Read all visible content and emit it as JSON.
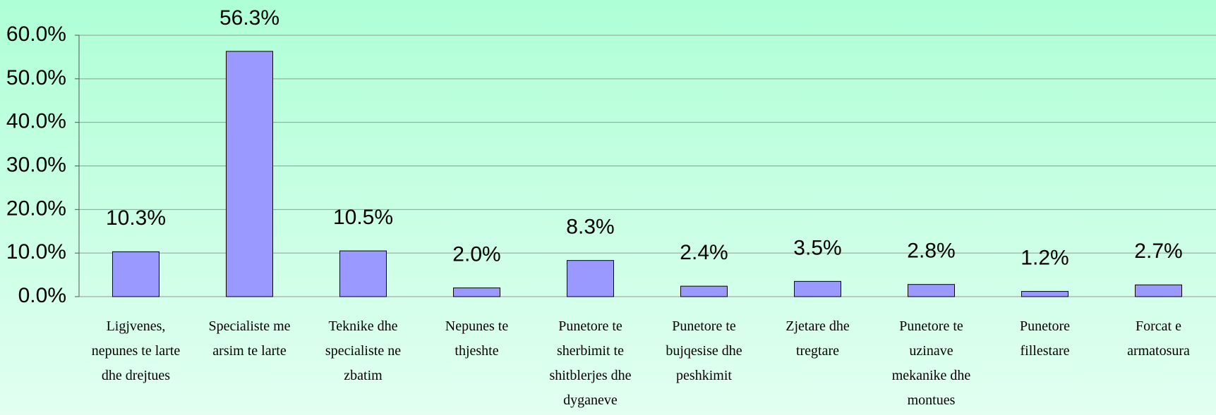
{
  "chart_data": {
    "type": "bar",
    "categories": [
      "Ligjvenes, nepunes te larte dhe drejtues",
      "Specialiste me arsim te larte",
      "Teknike dhe specialiste ne zbatim",
      "Nepunes te thjeshte",
      "Punetore te sherbimit te shitblerjes dhe dyganeve",
      "Punetore te bujqesise dhe peshkimit",
      "Zjetare dhe tregtare",
      "Punetore te uzinave mekanike dhe montues",
      "Punetore fillestare",
      "Forcat e armatosura"
    ],
    "values": [
      10.3,
      56.3,
      10.5,
      2.0,
      8.3,
      2.4,
      3.5,
      2.8,
      1.2,
      2.7
    ],
    "value_labels": [
      "10.3%",
      "56.3%",
      "10.5%",
      "2.0%",
      "8.3%",
      "2.4%",
      "3.5%",
      "2.8%",
      "1.2%",
      "2.7%"
    ],
    "color": "#9999ff",
    "ylim": [
      0,
      60
    ],
    "yticks": [
      {
        "value": 0,
        "label": "0.0%"
      },
      {
        "value": 10,
        "label": "10.0%"
      },
      {
        "value": 20,
        "label": "20.0%"
      },
      {
        "value": 30,
        "label": "30.0%"
      },
      {
        "value": 40,
        "label": "40.0%"
      },
      {
        "value": 50,
        "label": "50.0%"
      },
      {
        "value": 60,
        "label": "60.0%"
      }
    ],
    "grid": true
  }
}
